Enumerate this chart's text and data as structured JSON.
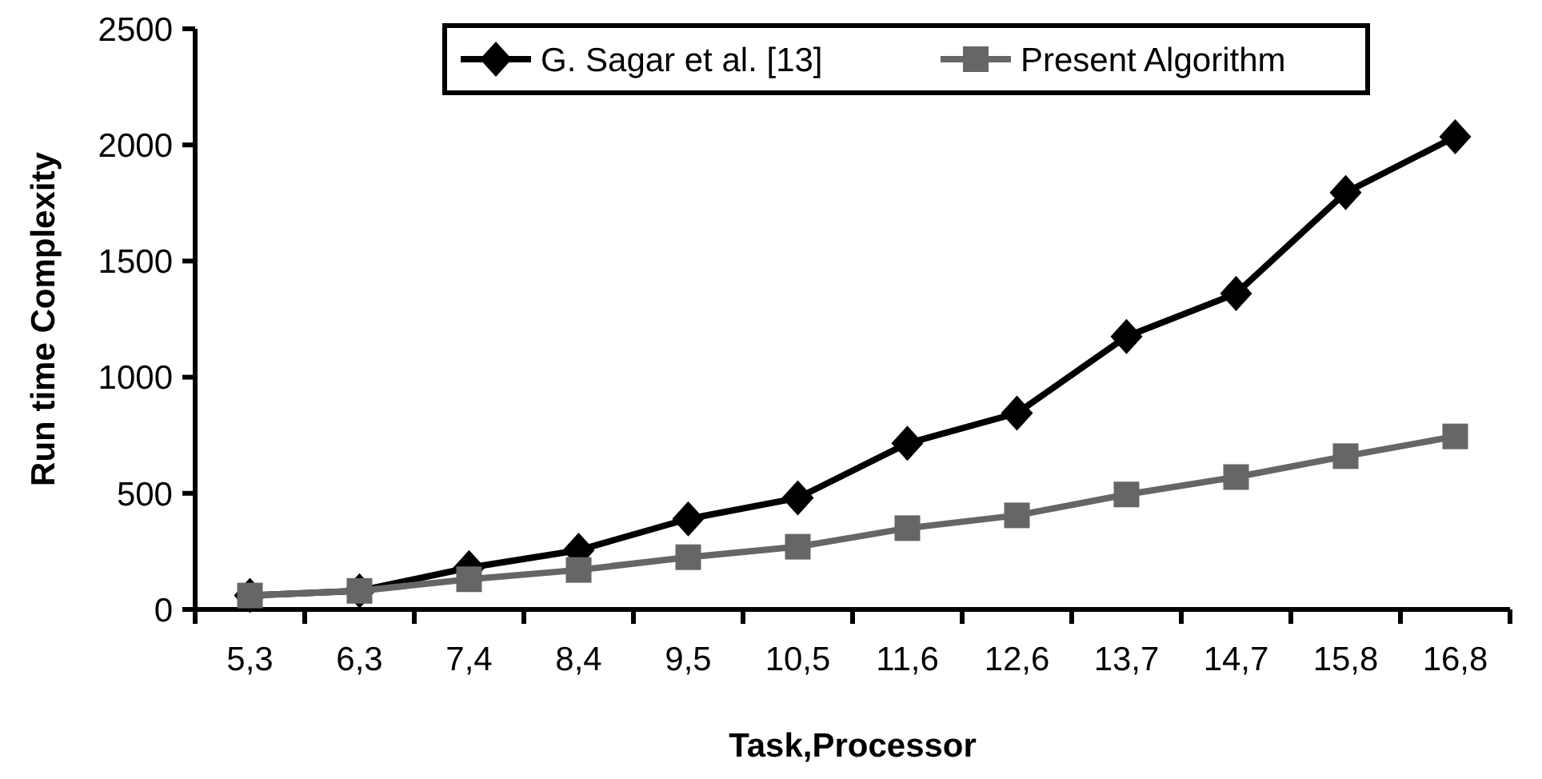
{
  "chart_data": {
    "type": "line",
    "xlabel": "Task,Processor",
    "ylabel": "Run time Complexity",
    "categories": [
      "5,3",
      "6,3",
      "7,4",
      "8,4",
      "9,5",
      "10,5",
      "11,6",
      "12,6",
      "13,7",
      "14,7",
      "15,8",
      "16,8"
    ],
    "series": [
      {
        "name": "G. Sagar et al. [13]",
        "color": "#000000",
        "marker": "diamond",
        "values": [
          60,
          80,
          180,
          255,
          390,
          480,
          715,
          845,
          1175,
          1360,
          1795,
          2035
        ]
      },
      {
        "name": "Present Algorithm",
        "color": "#666666",
        "marker": "square",
        "values": [
          60,
          80,
          130,
          170,
          225,
          270,
          350,
          405,
          495,
          570,
          660,
          745
        ]
      }
    ],
    "ylim": [
      0,
      2500
    ],
    "yticks": [
      0,
      500,
      1000,
      1500,
      2000,
      2500
    ],
    "grid": false,
    "legend": "top"
  }
}
